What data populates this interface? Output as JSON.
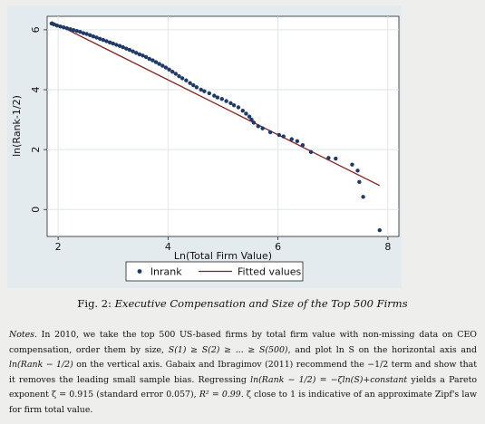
{
  "chart_data": {
    "type": "scatter",
    "xlabel": "Ln(Total Firm Value)",
    "ylabel": "ln(Rank-1/2)",
    "xlim": [
      1.8,
      8.2
    ],
    "ylim": [
      -0.9,
      6.45
    ],
    "xticks": [
      "2",
      "4",
      "6",
      "8"
    ],
    "yticks": [
      "0",
      "2",
      "4",
      "6"
    ],
    "grid": true,
    "legend": "bottom",
    "series": [
      {
        "name": "lnrank",
        "kind": "points",
        "color": "#1f3a68",
        "points": [
          [
            1.88,
            6.21
          ],
          [
            1.92,
            6.18
          ],
          [
            1.98,
            6.14
          ],
          [
            2.04,
            6.11
          ],
          [
            2.1,
            6.08
          ],
          [
            2.16,
            6.05
          ],
          [
            2.22,
            6.02
          ],
          [
            2.28,
            5.99
          ],
          [
            2.34,
            5.96
          ],
          [
            2.4,
            5.93
          ],
          [
            2.46,
            5.89
          ],
          [
            2.52,
            5.86
          ],
          [
            2.58,
            5.82
          ],
          [
            2.64,
            5.78
          ],
          [
            2.7,
            5.74
          ],
          [
            2.76,
            5.7
          ],
          [
            2.82,
            5.66
          ],
          [
            2.88,
            5.62
          ],
          [
            2.94,
            5.58
          ],
          [
            3.0,
            5.54
          ],
          [
            3.06,
            5.5
          ],
          [
            3.12,
            5.46
          ],
          [
            3.18,
            5.42
          ],
          [
            3.24,
            5.37
          ],
          [
            3.3,
            5.33
          ],
          [
            3.36,
            5.28
          ],
          [
            3.42,
            5.23
          ],
          [
            3.48,
            5.18
          ],
          [
            3.54,
            5.14
          ],
          [
            3.6,
            5.09
          ],
          [
            3.66,
            5.03
          ],
          [
            3.72,
            4.98
          ],
          [
            3.78,
            4.92
          ],
          [
            3.84,
            4.86
          ],
          [
            3.9,
            4.8
          ],
          [
            3.96,
            4.74
          ],
          [
            4.02,
            4.67
          ],
          [
            4.08,
            4.6
          ],
          [
            4.14,
            4.53
          ],
          [
            4.2,
            4.45
          ],
          [
            4.26,
            4.38
          ],
          [
            4.33,
            4.31
          ],
          [
            4.4,
            4.22
          ],
          [
            4.46,
            4.15
          ],
          [
            4.52,
            4.08
          ],
          [
            4.6,
            4.0
          ],
          [
            4.66,
            3.95
          ],
          [
            4.75,
            3.88
          ],
          [
            4.84,
            3.8
          ],
          [
            4.9,
            3.74
          ],
          [
            4.98,
            3.69
          ],
          [
            5.06,
            3.62
          ],
          [
            5.14,
            3.55
          ],
          [
            5.2,
            3.48
          ],
          [
            5.28,
            3.41
          ],
          [
            5.36,
            3.3
          ],
          [
            5.42,
            3.2
          ],
          [
            5.48,
            3.1
          ],
          [
            5.52,
            3.0
          ],
          [
            5.56,
            2.9
          ],
          [
            5.64,
            2.78
          ],
          [
            5.72,
            2.71
          ],
          [
            5.86,
            2.58
          ],
          [
            6.02,
            2.49
          ],
          [
            6.1,
            2.44
          ],
          [
            6.25,
            2.35
          ],
          [
            6.35,
            2.28
          ],
          [
            6.45,
            2.15
          ],
          [
            6.6,
            1.92
          ],
          [
            6.92,
            1.72
          ],
          [
            7.05,
            1.7
          ],
          [
            7.35,
            1.5
          ],
          [
            7.45,
            1.3
          ],
          [
            7.48,
            0.92
          ],
          [
            7.55,
            0.42
          ],
          [
            7.85,
            -0.69
          ]
        ]
      },
      {
        "name": "Fitted values",
        "kind": "line",
        "color": "#8b1a1a",
        "points": [
          [
            1.88,
            6.27
          ],
          [
            7.85,
            0.8
          ]
        ]
      }
    ]
  },
  "caption": {
    "label": "Fig. 2:",
    "title": "Executive Compensation and Size of the Top 500 Firms"
  },
  "notes": {
    "label": "Notes.",
    "text_1": "In 2010, we take the top 500 US-based firms by total firm value with non-missing data on CEO compensation, order them by size,",
    "order_math": "S(1) ≥ S(2) ≥ ... ≥ S(500)",
    "text_2": ", and plot ln S on the horizontal axis and",
    "rank_math": "ln(Rank − 1/2)",
    "text_3": "on the vertical axis. Gabaix and Ibragimov (2011) recommend the −1/2 term and show that it removes the leading small sample bias. Regressing",
    "regression_math": "ln(Rank − 1/2) = −ζln(S)+constant",
    "text_4": "yields a Pareto exponent ζ = 0.915 (standard error 0.057),",
    "r2_math": "R² = 0.99",
    "text_5": ". ζ close to 1 is indicative of an approximate Zipf's law for firm total value."
  }
}
